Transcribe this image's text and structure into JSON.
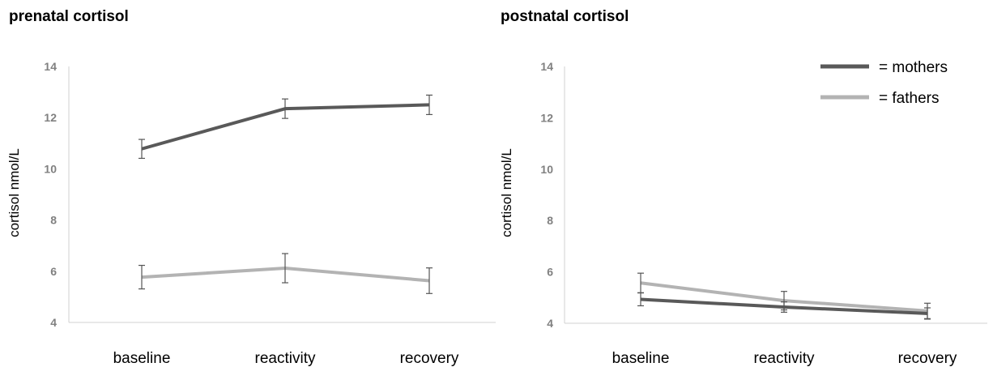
{
  "chart_data": [
    {
      "type": "line",
      "title": "prenatal cortisol",
      "ylabel": "cortisol nmol/L",
      "xlabel": "",
      "categories": [
        "baseline",
        "reactivity",
        "recovery"
      ],
      "ylim": [
        4,
        14
      ],
      "yticks": [
        4,
        6,
        8,
        10,
        12,
        14
      ],
      "grid": false,
      "series": [
        {
          "name": "mothers",
          "color": "#595959",
          "values": [
            10.78,
            12.35,
            12.5
          ],
          "errors": [
            0.37,
            0.38,
            0.38
          ]
        },
        {
          "name": "fathers",
          "color": "#b3b3b3",
          "values": [
            5.77,
            6.12,
            5.63
          ],
          "errors": [
            0.46,
            0.57,
            0.5
          ]
        }
      ]
    },
    {
      "type": "line",
      "title": "postnatal cortisol",
      "ylabel": "cortisol nmol/L",
      "xlabel": "",
      "categories": [
        "baseline",
        "reactivity",
        "recovery"
      ],
      "ylim": [
        4,
        14
      ],
      "yticks": [
        4,
        6,
        8,
        10,
        12,
        14
      ],
      "grid": false,
      "legend": {
        "placement": "top-right",
        "entries": [
          "= mothers",
          "= fathers"
        ]
      },
      "series": [
        {
          "name": "mothers",
          "color": "#595959",
          "values": [
            4.93,
            4.63,
            4.38
          ],
          "errors": [
            0.25,
            0.2,
            0.22
          ]
        },
        {
          "name": "fathers",
          "color": "#b3b3b3",
          "values": [
            5.57,
            4.88,
            4.48
          ],
          "errors": [
            0.38,
            0.36,
            0.3
          ]
        }
      ]
    }
  ]
}
